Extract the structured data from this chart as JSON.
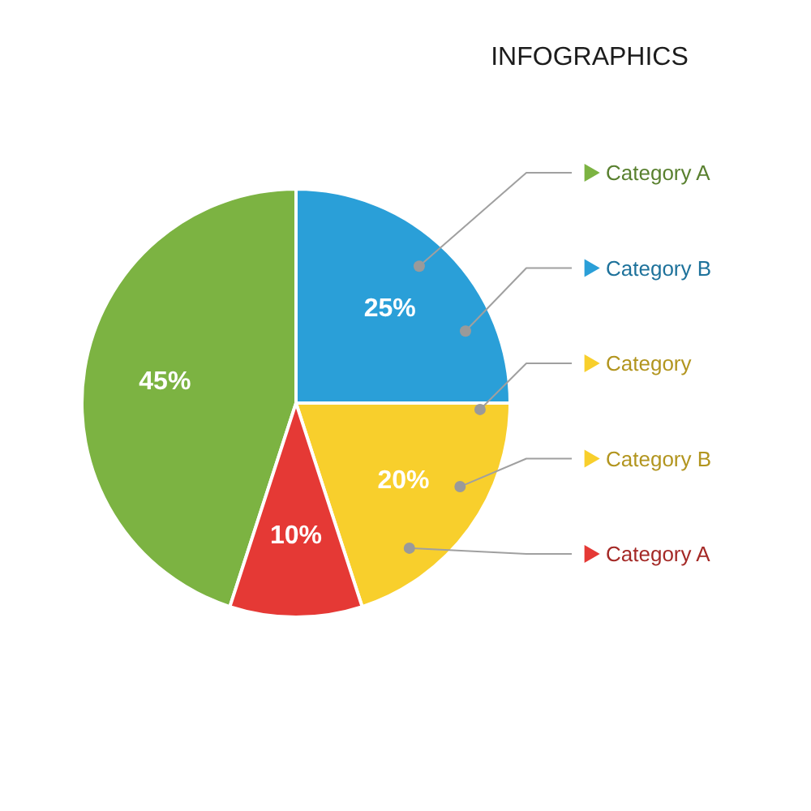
{
  "chart_data": {
    "type": "pie",
    "title": "INFOGRAPHICS",
    "categories": [
      "Category A",
      "Category B",
      "Category",
      "Category B",
      "Category A"
    ],
    "values": [
      45,
      25,
      20,
      null,
      10
    ],
    "colors": [
      "#7cb342",
      "#2a9fd8",
      "#f8cf2c",
      "#f8cf2c",
      "#e53935"
    ],
    "value_labels": [
      "45%",
      "25%",
      "20%",
      null,
      "10%"
    ],
    "legend": "right"
  }
}
